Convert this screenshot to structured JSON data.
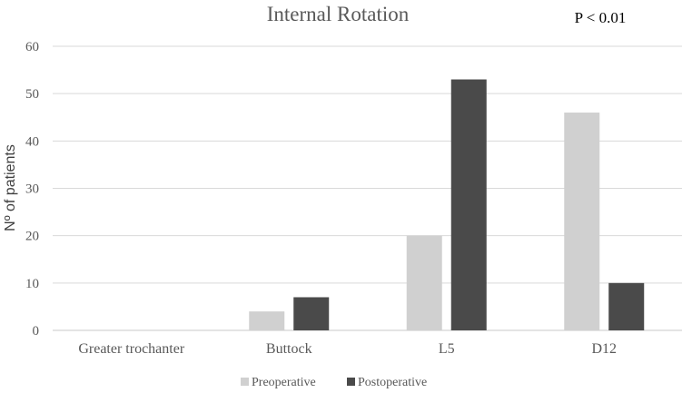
{
  "chart_data": {
    "type": "bar",
    "title": "Internal Rotation",
    "annotation": "P < 0.01",
    "xlabel": "",
    "ylabel": "Nº of patients",
    "categories": [
      "Greater trochanter",
      "Buttock",
      "L5",
      "D12"
    ],
    "series": [
      {
        "name": "Preoperative",
        "values": [
          0,
          4,
          20,
          46
        ],
        "color": "#d0d0d0"
      },
      {
        "name": "Postoperative",
        "values": [
          0,
          7,
          53,
          10
        ],
        "color": "#4a4a4a"
      }
    ],
    "ylim": [
      0,
      60
    ],
    "yticks": [
      0,
      10,
      20,
      30,
      40,
      50,
      60
    ],
    "grid": true,
    "legend_position": "bottom"
  }
}
